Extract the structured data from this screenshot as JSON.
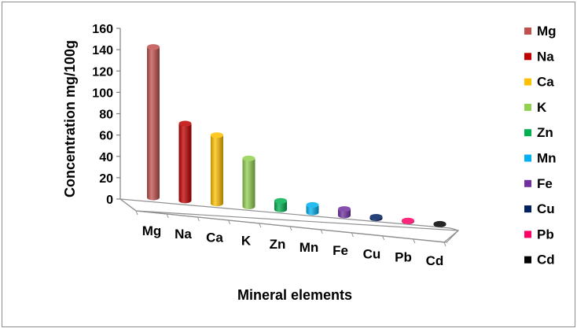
{
  "chart_data": {
    "type": "bar",
    "style": "3d-cylinder",
    "categories": [
      "Mg",
      "Na",
      "Ca",
      "K",
      "Zn",
      "Mn",
      "Fe",
      "Cu",
      "Pb",
      "Cd"
    ],
    "values": [
      141,
      72,
      64,
      45,
      8,
      7,
      6,
      1.5,
      0.8,
      0.5
    ],
    "colors": [
      "#c0504d",
      "#c00000",
      "#ffc000",
      "#92d050",
      "#00b050",
      "#00b0f0",
      "#7030a0",
      "#002060",
      "#ff0066",
      "#000000"
    ],
    "xlabel": "Mineral elements",
    "ylabel": "Concentration mg/100g",
    "ylim": [
      0,
      160
    ],
    "yticks": [
      "0",
      "20",
      "40",
      "60",
      "80",
      "100",
      "120",
      "140",
      "160"
    ],
    "grid": false,
    "legend_position": "right"
  }
}
